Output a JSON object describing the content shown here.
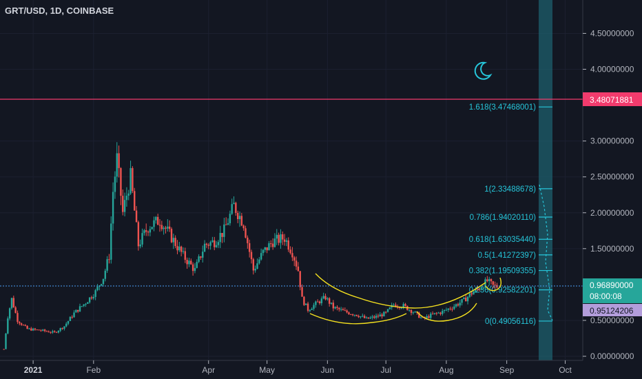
{
  "header": {
    "title": "GRT/USD, 1D, COINBASE"
  },
  "colors": {
    "background": "#131722",
    "up": "#26a69a",
    "down": "#ef5350",
    "fib": "#26c6da",
    "resistance": "#f23b6d",
    "pattern": "#f5e11f",
    "price_line": "#4b9ff5",
    "countdown_bg": "#26a69a",
    "lavender": "#b39ddb",
    "axis_text": "#b2b5be"
  },
  "price_axis": {
    "labels": [
      "4.50000000",
      "4.00000000",
      "3.00000000",
      "2.50000000",
      "2.00000000",
      "1.50000000",
      "0.50000000",
      "0.00000000"
    ]
  },
  "time_axis": {
    "labels": [
      "2021",
      "Feb",
      "Apr",
      "May",
      "Jun",
      "Jul",
      "Aug",
      "Sep",
      "Oct"
    ]
  },
  "badges": {
    "resistance": "3.48071881",
    "last_price": "0.96890000",
    "countdown": "08:00:08",
    "other_price": "0.95124206"
  },
  "fib_levels": [
    {
      "ratio": "1.618",
      "value": "3.47468001",
      "label": "1.618(3.47468001)"
    },
    {
      "ratio": "1",
      "value": "2.33488678",
      "label": "1(2.33488678)"
    },
    {
      "ratio": "0.786",
      "value": "1.94020110",
      "label": "0.786(1.94020110)"
    },
    {
      "ratio": "0.618",
      "value": "1.63035440",
      "label": "0.618(1.63035440)"
    },
    {
      "ratio": "0.5",
      "value": "1.41272397",
      "label": "0.5(1.41272397)"
    },
    {
      "ratio": "0.382",
      "value": "1.19509355",
      "label": "0.382(1.19509355)"
    },
    {
      "ratio": "0.236",
      "value": "0.92582201",
      "label": "0.236(0.92582201)"
    },
    {
      "ratio": "0",
      "value": "0.49056116",
      "label": "0(0.49056116)"
    }
  ],
  "moon_icon": "crescent-moon-icon",
  "chart_data": {
    "type": "candlestick",
    "title": "GRT/USD, 1D, COINBASE",
    "ylim": [
      0,
      4.85
    ],
    "xlim": [
      "2020-12-15",
      "2021-10-10"
    ],
    "x_ticks": [
      "2021",
      "Feb",
      "Apr",
      "May",
      "Jun",
      "Jul",
      "Aug",
      "Sep",
      "Oct"
    ],
    "resistance_level": 3.48071881,
    "last_price": 0.9689,
    "series_anchors": [
      {
        "date": "2020-12-17",
        "close": 0.1
      },
      {
        "date": "2020-12-19",
        "close": 0.55
      },
      {
        "date": "2020-12-21",
        "close": 0.8
      },
      {
        "date": "2020-12-24",
        "close": 0.5
      },
      {
        "date": "2020-12-29",
        "close": 0.38
      },
      {
        "date": "2021-01-05",
        "close": 0.36
      },
      {
        "date": "2021-01-12",
        "close": 0.33
      },
      {
        "date": "2021-01-17",
        "close": 0.42
      },
      {
        "date": "2021-01-22",
        "close": 0.6
      },
      {
        "date": "2021-01-28",
        "close": 0.75
      },
      {
        "date": "2021-02-02",
        "close": 0.9
      },
      {
        "date": "2021-02-06",
        "close": 1.1
      },
      {
        "date": "2021-02-09",
        "close": 1.4
      },
      {
        "date": "2021-02-11",
        "close": 2.3
      },
      {
        "date": "2021-02-13",
        "close": 2.75
      },
      {
        "date": "2021-02-16",
        "close": 2.0
      },
      {
        "date": "2021-02-20",
        "close": 2.5
      },
      {
        "date": "2021-02-24",
        "close": 1.55
      },
      {
        "date": "2021-03-01",
        "close": 1.8
      },
      {
        "date": "2021-03-07",
        "close": 1.9
      },
      {
        "date": "2021-03-12",
        "close": 1.7
      },
      {
        "date": "2021-03-19",
        "close": 1.4
      },
      {
        "date": "2021-03-25",
        "close": 1.2
      },
      {
        "date": "2021-03-30",
        "close": 1.55
      },
      {
        "date": "2021-04-04",
        "close": 1.6
      },
      {
        "date": "2021-04-09",
        "close": 1.75
      },
      {
        "date": "2021-04-14",
        "close": 2.1
      },
      {
        "date": "2021-04-19",
        "close": 1.85
      },
      {
        "date": "2021-04-24",
        "close": 1.2
      },
      {
        "date": "2021-04-29",
        "close": 1.45
      },
      {
        "date": "2021-05-04",
        "close": 1.6
      },
      {
        "date": "2021-05-10",
        "close": 1.65
      },
      {
        "date": "2021-05-14",
        "close": 1.45
      },
      {
        "date": "2021-05-17",
        "close": 1.2
      },
      {
        "date": "2021-05-19",
        "close": 0.8
      },
      {
        "date": "2021-05-22",
        "close": 0.65
      },
      {
        "date": "2021-05-27",
        "close": 0.75
      },
      {
        "date": "2021-05-31",
        "close": 0.82
      },
      {
        "date": "2021-06-04",
        "close": 0.68
      },
      {
        "date": "2021-06-10",
        "close": 0.62
      },
      {
        "date": "2021-06-16",
        "close": 0.58
      },
      {
        "date": "2021-06-21",
        "close": 0.52
      },
      {
        "date": "2021-06-26",
        "close": 0.55
      },
      {
        "date": "2021-07-01",
        "close": 0.6
      },
      {
        "date": "2021-07-05",
        "close": 0.72
      },
      {
        "date": "2021-07-10",
        "close": 0.7
      },
      {
        "date": "2021-07-15",
        "close": 0.62
      },
      {
        "date": "2021-07-20",
        "close": 0.52
      },
      {
        "date": "2021-07-25",
        "close": 0.58
      },
      {
        "date": "2021-07-30",
        "close": 0.62
      },
      {
        "date": "2021-08-05",
        "close": 0.7
      },
      {
        "date": "2021-08-10",
        "close": 0.78
      },
      {
        "date": "2021-08-14",
        "close": 0.88
      },
      {
        "date": "2021-08-18",
        "close": 0.95
      },
      {
        "date": "2021-08-22",
        "close": 1.05
      },
      {
        "date": "2021-08-25",
        "close": 0.98
      },
      {
        "date": "2021-08-27",
        "close": 0.97
      }
    ]
  }
}
